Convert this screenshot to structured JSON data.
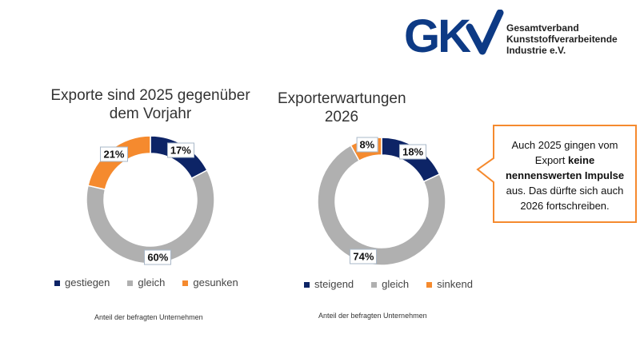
{
  "logo": {
    "mark": "GKV",
    "lines": [
      "Gesamtverband",
      "Kunststoffverarbeitende",
      "Industrie e.V."
    ],
    "color": "#0d3a85"
  },
  "colors": {
    "navy": "#0d2466",
    "gray": "#b0b0b0",
    "orange": "#f58a2e",
    "callout_border": "#f58a2e"
  },
  "callout": {
    "pre": "Auch 2025 gingen vom Export ",
    "bold": "keine nennenswerten Impulse",
    "post": " aus. Das dürfte sich auch 2026 fortschreiben."
  },
  "chart_data": [
    {
      "type": "pie",
      "donut": true,
      "title": "Exporte sind 2025 gegenüber dem Vorjahr",
      "categories": [
        "gestiegen",
        "gleich",
        "gesunken"
      ],
      "values": [
        17,
        60,
        21
      ],
      "labels": [
        "17%",
        "60%",
        "21%"
      ],
      "colors": [
        "#0d2466",
        "#b0b0b0",
        "#f58a2e"
      ],
      "legend": "bottom",
      "note": "Anteil der befragten Unternehmen"
    },
    {
      "type": "pie",
      "donut": true,
      "title": "Exporterwartungen 2026",
      "categories": [
        "steigend",
        "gleich",
        "sinkend"
      ],
      "values": [
        18,
        74,
        8
      ],
      "labels": [
        "18%",
        "74%",
        "8%"
      ],
      "colors": [
        "#0d2466",
        "#b0b0b0",
        "#f58a2e"
      ],
      "legend": "bottom",
      "note": "Anteil der befragten Unternehmen"
    }
  ]
}
